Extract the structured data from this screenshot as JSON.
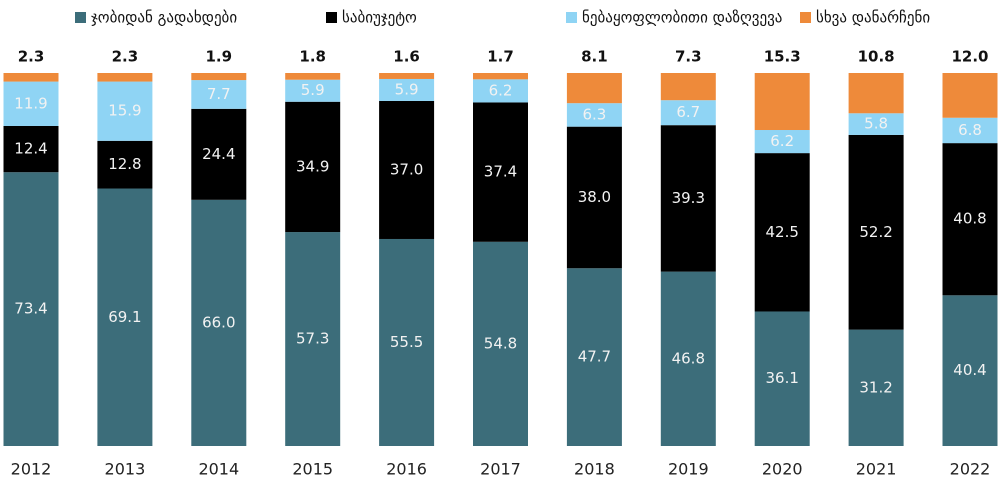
{
  "chart_data": {
    "type": "stacked_bar",
    "categories": [
      "2012",
      "2013",
      "2014",
      "2015",
      "2016",
      "2017",
      "2018",
      "2019",
      "2020",
      "2021",
      "2022"
    ],
    "series": [
      {
        "name": "ჯობიდან გადახდები",
        "color": "#3c6d7a",
        "values": [
          73.4,
          69.1,
          66.0,
          57.3,
          55.5,
          54.8,
          47.7,
          46.8,
          36.1,
          31.2,
          40.4
        ],
        "value_labels": [
          "73.4",
          "69.1",
          "66.0",
          "57.3",
          "55.5",
          "54.8",
          "47.7",
          "46.8",
          "36.1",
          "31.2",
          "40.4"
        ]
      },
      {
        "name": "საბიუჯეტო",
        "color": "#000000",
        "values": [
          12.4,
          12.8,
          24.4,
          34.9,
          37.0,
          37.4,
          38.0,
          39.3,
          42.5,
          52.2,
          40.8
        ],
        "value_labels": [
          "12.4",
          "12.8",
          "24.4",
          "34.9",
          "37.0",
          "37.4",
          "38.0",
          "39.3",
          "42.5",
          "52.2",
          "40.8"
        ]
      },
      {
        "name": "ნებაყოფლობითი დაზღვევა",
        "color": "#8fd4f4",
        "values": [
          11.9,
          15.9,
          7.7,
          5.9,
          5.9,
          6.2,
          6.3,
          6.7,
          6.2,
          5.8,
          6.8
        ],
        "value_labels": [
          "11.9",
          "15.9",
          "7.7",
          "5.9",
          "5.9",
          "6.2",
          "6.3",
          "6.7",
          "6.2",
          "5.8",
          "6.8"
        ]
      },
      {
        "name": "სხვა დანარჩენი",
        "color": "#ee8a3a",
        "values": [
          2.3,
          2.3,
          1.9,
          1.8,
          1.6,
          1.7,
          8.1,
          7.3,
          15.3,
          10.8,
          12.0
        ],
        "value_labels": [
          "2.3",
          "2.3",
          "1.9",
          "1.8",
          "1.6",
          "1.7",
          "8.1",
          "7.3",
          "15.3",
          "10.8",
          "12.0"
        ]
      }
    ]
  }
}
